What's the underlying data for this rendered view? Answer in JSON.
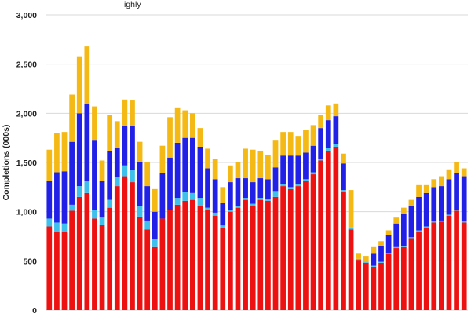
{
  "chart_data": {
    "type": "bar",
    "stacked": true,
    "title": "",
    "visible_title_fragment": "ighly",
    "ylabel": "Completions (000s)",
    "xlabel": "",
    "ylim": [
      0,
      3000
    ],
    "ytick_values": [
      0,
      500,
      1000,
      1500,
      2000,
      2500,
      3000
    ],
    "ytick_labels": [
      "0",
      "500",
      "1,000",
      "1,500",
      "2,000",
      "2,500",
      "3,000"
    ],
    "grid": true,
    "legend": "none visible",
    "colors": [
      "#ee1111",
      "#3ec0ec",
      "#2020e6",
      "#f5b916"
    ],
    "series": [
      {
        "values": [
          850,
          800,
          800,
          1010,
          1150,
          1190,
          930,
          870,
          1040,
          1260,
          1360,
          1300,
          950,
          820,
          640,
          930,
          1020,
          1070,
          1110,
          1120,
          1060,
          1020,
          960,
          840,
          1000,
          1040,
          1120,
          1060,
          1120,
          1110,
          1150,
          1260,
          1230,
          1260,
          1310,
          1380,
          1520,
          1620,
          1660,
          1200,
          820,
          510,
          480,
          440,
          480,
          570,
          630,
          640,
          730,
          800,
          840,
          890,
          900,
          960,
          1010,
          890
        ]
      },
      {
        "values": [
          80,
          90,
          80,
          60,
          110,
          120,
          90,
          70,
          80,
          90,
          110,
          120,
          110,
          90,
          80,
          0,
          0,
          70,
          90,
          70,
          80,
          20,
          30,
          20,
          20,
          20,
          20,
          20,
          20,
          20,
          60,
          20,
          20,
          20,
          20,
          20,
          20,
          30,
          30,
          20,
          20,
          10,
          10,
          10,
          10,
          10,
          10,
          10,
          10,
          10,
          10,
          10,
          10,
          10,
          10,
          10
        ]
      },
      {
        "values": [
          380,
          510,
          530,
          640,
          740,
          790,
          710,
          370,
          500,
          300,
          400,
          450,
          440,
          350,
          280,
          460,
          530,
          560,
          550,
          560,
          520,
          400,
          340,
          230,
          280,
          280,
          200,
          220,
          200,
          200,
          240,
          290,
          320,
          290,
          270,
          270,
          310,
          280,
          280,
          270,
          0,
          0,
          0,
          130,
          160,
          180,
          240,
          330,
          320,
          340,
          340,
          350,
          350,
          360,
          370,
          460
        ]
      },
      {
        "values": [
          320,
          400,
          400,
          480,
          580,
          580,
          340,
          210,
          360,
          270,
          270,
          260,
          210,
          240,
          230,
          280,
          410,
          360,
          280,
          250,
          190,
          200,
          210,
          160,
          170,
          160,
          300,
          330,
          280,
          250,
          280,
          240,
          240,
          200,
          230,
          210,
          130,
          150,
          130,
          100,
          380,
          60,
          60,
          60,
          50,
          50,
          60,
          60,
          60,
          120,
          80,
          80,
          100,
          100,
          110,
          80
        ]
      }
    ]
  }
}
